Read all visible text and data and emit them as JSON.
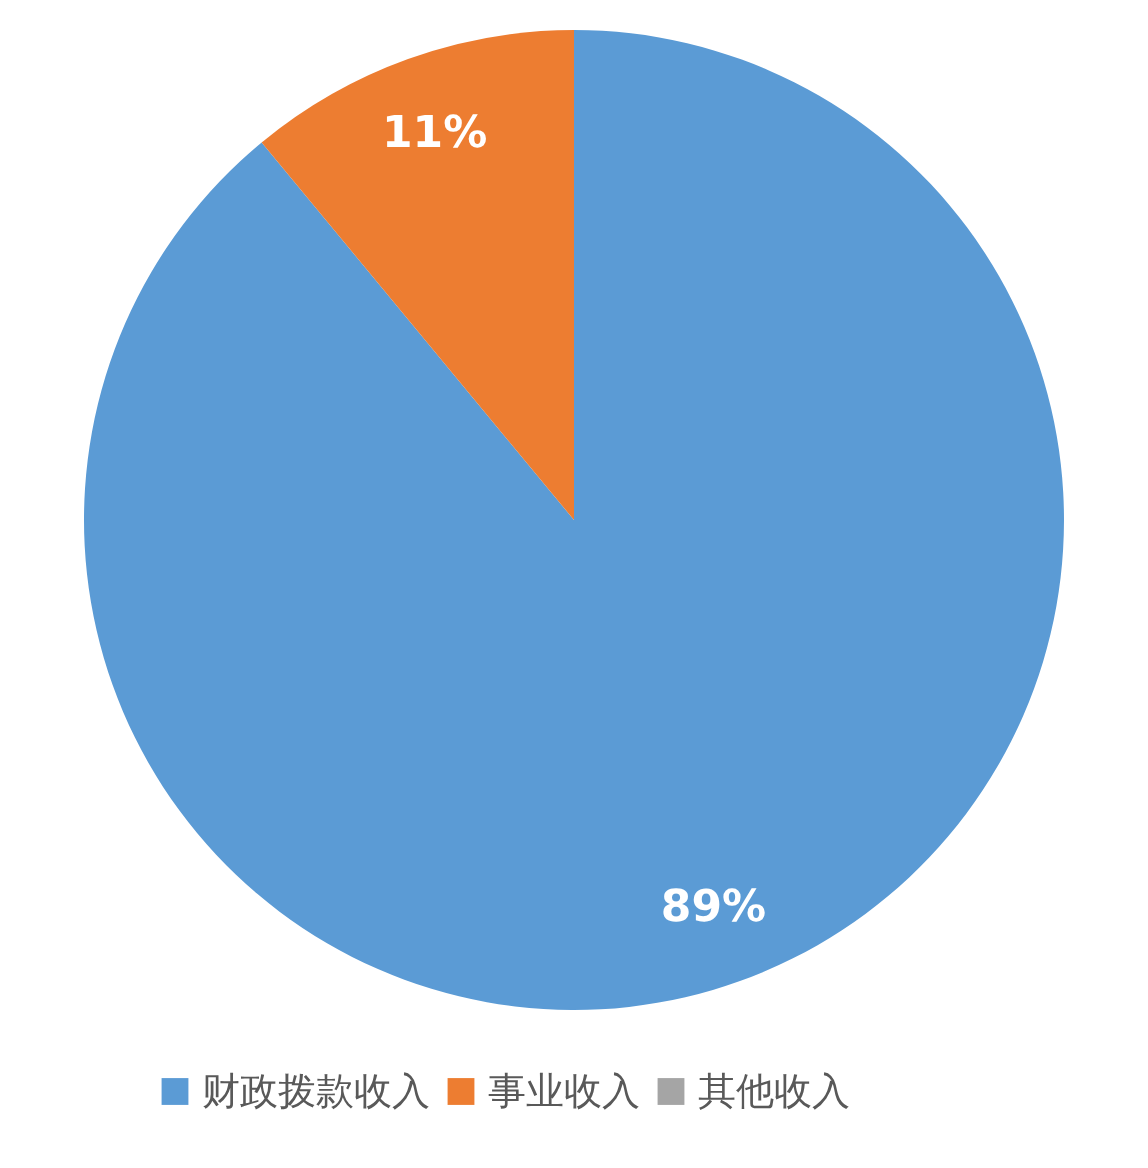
{
  "chart_data": {
    "type": "pie",
    "categories": [
      "财政拨款收入",
      "事业收入",
      "其他收入"
    ],
    "values": [
      89,
      11,
      0
    ],
    "colors": [
      "#5b9bd5",
      "#ed7d31",
      "#a5a5a5"
    ],
    "value_labels": [
      "89%",
      "11%",
      null
    ],
    "legend": "bottom"
  }
}
